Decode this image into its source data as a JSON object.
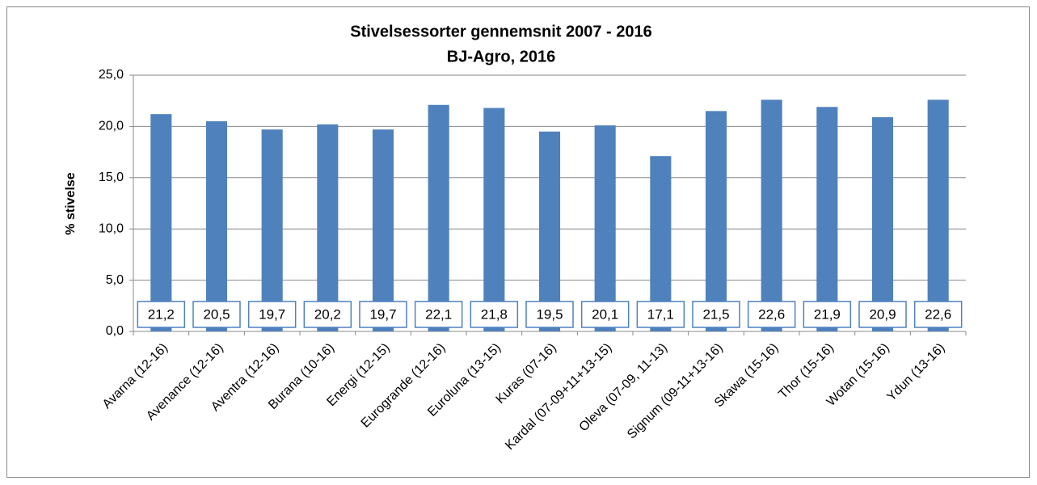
{
  "chart_data": {
    "type": "bar",
    "title": "Stivelsessorter gennemsnit 2007 - 2016",
    "subtitle": "BJ-Agro, 2016",
    "y_label": "% stivelse",
    "categories": [
      "Avarna (12-16)",
      "Avenance (12-16)",
      "Aventra (12-16)",
      "Burana (10-16)",
      "Energi (12-15)",
      "Eurogrande (12-16)",
      "Euroluna (13-15)",
      "Kuras (07-16)",
      "Kardal (07-09+11+13-15)",
      "Oleva (07-09, 11-13)",
      "Signum (09-11+13-16)",
      "Skawa (15-16)",
      "Thor (15-16)",
      "Wotan (15-16)",
      "Ydun (13-16)"
    ],
    "values": [
      21.2,
      20.5,
      19.7,
      20.2,
      19.7,
      22.1,
      21.8,
      19.5,
      20.1,
      17.1,
      21.5,
      22.6,
      21.9,
      20.9,
      22.6
    ],
    "value_labels": [
      "21,2",
      "20,5",
      "19,7",
      "20,2",
      "19,7",
      "22,1",
      "21,8",
      "19,5",
      "20,1",
      "17,1",
      "21,5",
      "22,6",
      "21,9",
      "20,9",
      "22,6"
    ],
    "color": "#4f81bd",
    "ylim": [
      0,
      25
    ],
    "yticks": [
      {
        "value": 0,
        "label": "0,0"
      },
      {
        "value": 5,
        "label": "5,0"
      },
      {
        "value": 10,
        "label": "10,0"
      },
      {
        "value": 15,
        "label": "15,0"
      },
      {
        "value": 20,
        "label": "20,0"
      },
      {
        "value": 25,
        "label": "25,0"
      }
    ],
    "grid": true
  }
}
